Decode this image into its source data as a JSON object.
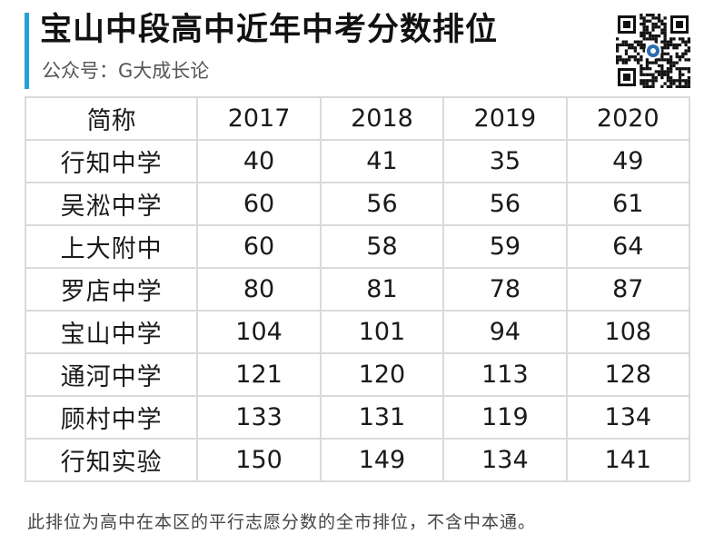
{
  "header": {
    "title": "宝山中段高中近年中考分数排位",
    "subtitle": "公众号：G大成长论",
    "accent_color": "#25a0d6"
  },
  "qr_code": {
    "icon": "qr-code-icon"
  },
  "table": {
    "columns": [
      "简称",
      "2017",
      "2018",
      "2019",
      "2020"
    ],
    "rows": [
      [
        "行知中学",
        "40",
        "41",
        "35",
        "49"
      ],
      [
        "吴淞中学",
        "60",
        "56",
        "56",
        "61"
      ],
      [
        "上大附中",
        "60",
        "58",
        "59",
        "64"
      ],
      [
        "罗店中学",
        "80",
        "81",
        "78",
        "87"
      ],
      [
        "宝山中学",
        "104",
        "101",
        "94",
        "108"
      ],
      [
        "通河中学",
        "121",
        "120",
        "113",
        "128"
      ],
      [
        "顾村中学",
        "133",
        "131",
        "119",
        "134"
      ],
      [
        "行知实验",
        "150",
        "149",
        "134",
        "141"
      ]
    ]
  },
  "footnote": "此排位为高中在本区的平行志愿分数的全市排位，不含中本通。"
}
